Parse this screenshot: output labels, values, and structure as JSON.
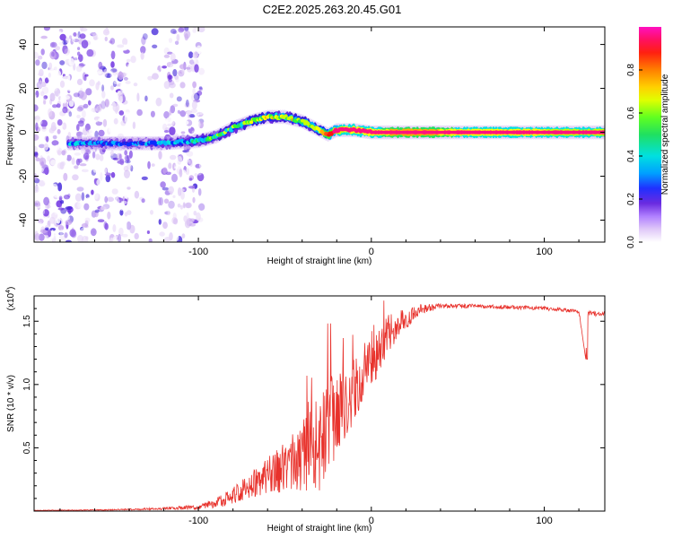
{
  "title": "C2E2.2025.263.20.45.G01",
  "colors": {
    "sig": [
      "#ffffff",
      "#e8d8f8",
      "#c9a8f0",
      "#9060e8",
      "#6a2be0",
      "#3b1ed8",
      "#0a2cff",
      "#00b4ff",
      "#00e0e0",
      "#20e060",
      "#30ff30",
      "#c8ff00",
      "#ffff00",
      "#ffb000",
      "#ff5010",
      "#ff1010",
      "#ff1080"
    ],
    "snr_line": "#e8322c",
    "axis": "#000000"
  },
  "chart_data": [
    {
      "id": "spectrogram",
      "type": "heatmap",
      "xlabel": "Height of straight line (km)",
      "ylabel": "Frequency (Hz)",
      "xlim": [
        -195,
        135
      ],
      "ylim": [
        -50,
        48
      ],
      "x_ticks": [
        -100,
        0,
        100
      ],
      "x_tick_labels": [
        "-100",
        "0",
        "100"
      ],
      "y_ticks": [
        -40,
        -20,
        0,
        20,
        40
      ],
      "y_tick_labels": [
        "-40",
        "-20",
        "0",
        "20",
        "40"
      ],
      "ridge": {
        "description": "Doppler frequency of the occultation signal",
        "x": [
          -175,
          -150,
          -120,
          -100,
          -90,
          -80,
          -70,
          -60,
          -50,
          -45,
          -40,
          -35,
          -30,
          -25,
          -20,
          -15,
          -10,
          0,
          20,
          60,
          100,
          135
        ],
        "freq": [
          -5,
          -5,
          -5,
          -4,
          -2,
          2,
          5,
          7,
          7,
          6,
          5,
          3,
          1,
          -1,
          1,
          1,
          1,
          0,
          0,
          0,
          0,
          0
        ],
        "amplitude": [
          0.35,
          0.3,
          0.35,
          0.45,
          0.55,
          0.6,
          0.65,
          0.7,
          0.7,
          0.65,
          0.55,
          0.5,
          0.6,
          0.75,
          0.85,
          0.9,
          0.9,
          0.95,
          1.0,
          0.95,
          0.9,
          0.85
        ]
      },
      "noise_region_x": [
        -195,
        -98
      ],
      "colorbar": {
        "label": "Normalized spectral amplitude",
        "range": [
          0,
          1
        ],
        "ticks": [
          0,
          0.2,
          0.4,
          0.6,
          0.8
        ],
        "tick_labels": [
          "0.0",
          "0.2",
          "0.4",
          "0.6",
          "0.8"
        ]
      }
    },
    {
      "id": "snr",
      "type": "line",
      "xlabel": "Height of straight line (km)",
      "ylabel": "SNR (10 * v/v)",
      "scale_label": "(x10",
      "scale_exp": "4",
      "xlim": [
        -195,
        135
      ],
      "ylim": [
        0,
        1.7
      ],
      "x_ticks": [
        -100,
        0,
        100
      ],
      "x_tick_labels": [
        "-100",
        "0",
        "100"
      ],
      "y_ticks": [
        0.5,
        1.0,
        1.5
      ],
      "y_tick_labels": [
        "0.5",
        "1.0",
        "1.5"
      ],
      "series": [
        {
          "name": "SNR",
          "x": [
            -195,
            -150,
            -120,
            -100,
            -90,
            -80,
            -70,
            -60,
            -50,
            -40,
            -30,
            -25,
            -20,
            -15,
            -10,
            -5,
            0,
            5,
            10,
            20,
            30,
            40,
            60,
            80,
            100,
            120,
            124,
            125,
            126,
            135
          ],
          "y": [
            0.005,
            0.01,
            0.02,
            0.03,
            0.06,
            0.12,
            0.2,
            0.28,
            0.35,
            0.42,
            0.6,
            0.72,
            0.78,
            0.85,
            0.95,
            1.05,
            1.15,
            1.28,
            1.4,
            1.52,
            1.6,
            1.62,
            1.62,
            1.61,
            1.6,
            1.58,
            1.2,
            1.56,
            1.56,
            1.56
          ],
          "noise_amp": [
            0.002,
            0.004,
            0.01,
            0.02,
            0.04,
            0.07,
            0.1,
            0.14,
            0.2,
            0.28,
            0.45,
            0.4,
            0.35,
            0.3,
            0.25,
            0.22,
            0.2,
            0.18,
            0.15,
            0.08,
            0.04,
            0.02,
            0.015,
            0.015,
            0.015,
            0.015,
            0.0,
            0.02,
            0.02,
            0.02
          ]
        }
      ]
    }
  ]
}
